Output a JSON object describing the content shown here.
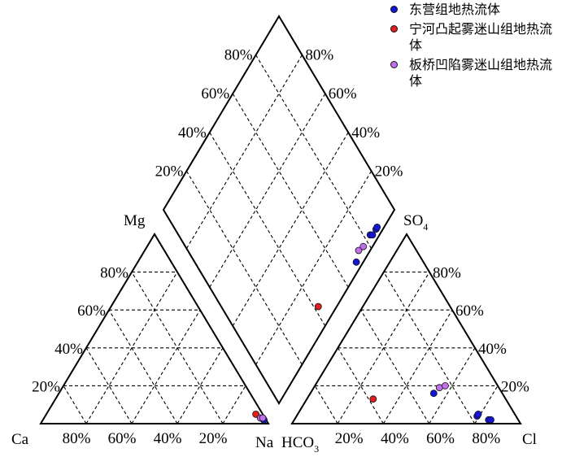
{
  "legend": {
    "items": [
      {
        "label": "东营组地热流体",
        "color": "#1515d8"
      },
      {
        "label": "宁河凸起雾迷山组地热流体",
        "color": "#e02020"
      },
      {
        "label": "板桥凹陷雾迷山组地热流体",
        "color": "#c070e8"
      }
    ]
  },
  "chart_data": {
    "type": "piper",
    "title": "",
    "cation_triangle": {
      "corners": {
        "left": "Ca",
        "right": "Na",
        "top": "Mg"
      },
      "tick_labels": [
        "20%",
        "40%",
        "60%",
        "80%"
      ]
    },
    "anion_triangle": {
      "corners": {
        "left": "HCO3",
        "right": "Cl",
        "top": "SO4"
      },
      "tick_labels": [
        "20%",
        "40%",
        "60%",
        "80%"
      ]
    },
    "diamond": {
      "tick_labels": [
        "20%",
        "40%",
        "60%",
        "80%"
      ]
    },
    "grid": true,
    "legend_position": "top-right",
    "series": [
      {
        "name": "东营组地热流体",
        "color": "#1515d8",
        "points": [
          {
            "ca": 1,
            "mg": 2,
            "na": 97,
            "hco3": 30,
            "so4": 16,
            "cl": 54
          },
          {
            "ca": 1,
            "mg": 3,
            "na": 96,
            "hco3": 17,
            "so4": 4,
            "cl": 79
          },
          {
            "ca": 1,
            "mg": 2,
            "na": 97,
            "hco3": 16,
            "so4": 5,
            "cl": 79
          },
          {
            "ca": 1,
            "mg": 2,
            "na": 97,
            "hco3": 13,
            "so4": 2,
            "cl": 85
          },
          {
            "ca": 1,
            "mg": 2,
            "na": 97,
            "hco3": 12,
            "so4": 2,
            "cl": 86
          }
        ]
      },
      {
        "name": "宁河凸起雾迷山组地热流体",
        "color": "#e02020",
        "points": [
          {
            "ca": 3,
            "mg": 5,
            "na": 92,
            "hco3": 58,
            "so4": 13,
            "cl": 29
          }
        ]
      },
      {
        "name": "板桥凹陷雾迷山组地热流体",
        "color": "#c070e8",
        "points": [
          {
            "ca": 2,
            "mg": 3,
            "na": 95,
            "hco3": 26,
            "so4": 19,
            "cl": 55
          },
          {
            "ca": 1,
            "mg": 3,
            "na": 96,
            "hco3": 23,
            "so4": 20,
            "cl": 57
          }
        ]
      }
    ]
  }
}
